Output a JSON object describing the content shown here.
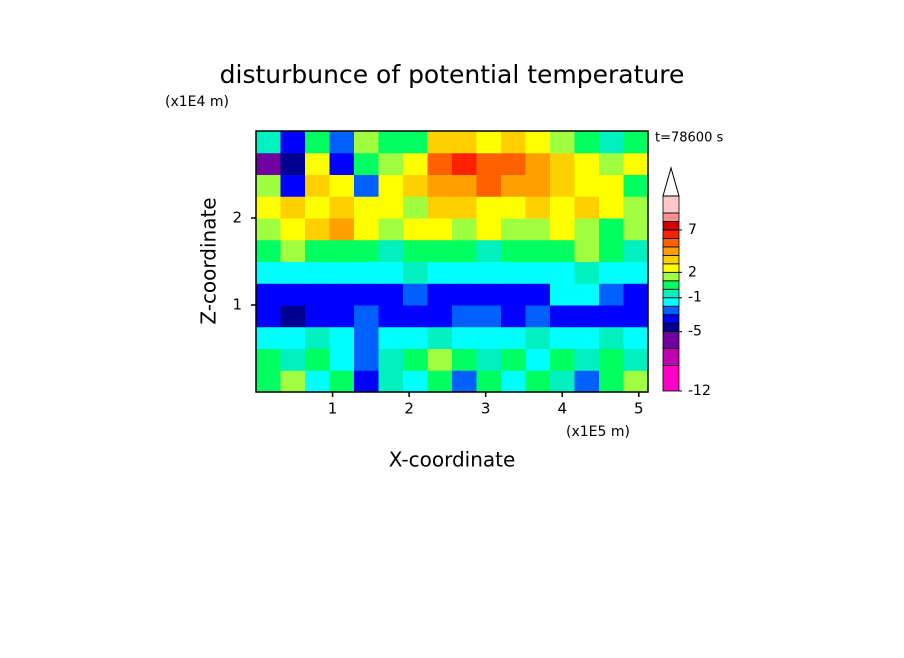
{
  "chart_data": {
    "type": "contour",
    "title": "disturbunce of potential temperature",
    "x_label": "X-coordinate",
    "y_label": "Z-coordinate",
    "x_unit": "(x1E5 m)",
    "y_unit": "(x1E4 m)",
    "annotation": "t=78600 s",
    "xlim": [
      0,
      5.12
    ],
    "ylim": [
      0,
      3
    ],
    "xticks": [
      1,
      2,
      3,
      4,
      5
    ],
    "yticks": [
      1,
      2
    ],
    "x": [
      0.16,
      0.48,
      0.8,
      1.12,
      1.44,
      1.76,
      2.08,
      2.4,
      2.72,
      3.04,
      3.36,
      3.68,
      4.0,
      4.32,
      4.64,
      4.96
    ],
    "y": [
      0.125,
      0.375,
      0.625,
      0.875,
      1.125,
      1.375,
      1.625,
      1.875,
      2.125,
      2.375,
      2.625,
      2.875
    ],
    "z": [
      [
        0.5,
        1.5,
        -1.5,
        0.5,
        -3.5,
        -0.5,
        -1.5,
        0.5,
        -2.5,
        0.5,
        -1.5,
        0.5,
        -0.5,
        -2.5,
        0.5,
        1.5
      ],
      [
        0.5,
        -0.5,
        0.5,
        -1.5,
        -2.5,
        -0.5,
        0.5,
        1.5,
        0.5,
        -0.5,
        0.5,
        -1.5,
        0.5,
        -0.5,
        0.5,
        -0.5
      ],
      [
        -1.5,
        -1.5,
        -0.5,
        -1.5,
        -2.5,
        -1.5,
        -1.5,
        -0.5,
        -1.5,
        -1.5,
        -1.5,
        -0.5,
        -1.5,
        -1.5,
        -0.5,
        -1.5
      ],
      [
        -3.5,
        -4.5,
        -3.5,
        -3.5,
        -2.5,
        -3.5,
        -3.5,
        -3.5,
        -2.5,
        -2.5,
        -3.5,
        -2.5,
        -3.5,
        -3.5,
        -3.5,
        -3.5
      ],
      [
        -3.5,
        -3.5,
        -3.5,
        -3.5,
        -3.5,
        -3.5,
        -2.5,
        -3.5,
        -3.5,
        -3.5,
        -3.5,
        -3.5,
        -1.5,
        -1.5,
        -2.5,
        -3.5
      ],
      [
        -1.5,
        -1.5,
        -1.5,
        -1.5,
        -1.5,
        -1.5,
        -0.5,
        -1.5,
        -1.5,
        -1.5,
        -1.5,
        -1.5,
        -1.5,
        -0.5,
        -1.5,
        -1.5
      ],
      [
        0.5,
        1.5,
        0.5,
        0.5,
        0.5,
        -0.5,
        0.5,
        0.5,
        0.5,
        -0.5,
        0.5,
        0.5,
        0.5,
        1.5,
        0.5,
        -0.5
      ],
      [
        1.5,
        2.5,
        3.5,
        4.5,
        2.5,
        1.5,
        2.5,
        2.5,
        1.5,
        2.5,
        1.5,
        1.5,
        2.5,
        1.5,
        0.5,
        1.5
      ],
      [
        2.5,
        3.5,
        2.5,
        3.5,
        2.5,
        2.5,
        1.5,
        3.5,
        3.5,
        2.5,
        2.5,
        3.5,
        2.5,
        3.5,
        2.5,
        1.5
      ],
      [
        1.5,
        -3.5,
        3.5,
        2.5,
        -2.5,
        2.5,
        3.5,
        4.5,
        4.5,
        5.5,
        4.5,
        4.5,
        3.5,
        2.5,
        2.5,
        0.5
      ],
      [
        -6.5,
        -4.5,
        2.5,
        -3.5,
        0.5,
        1.5,
        2.5,
        5.5,
        6.5,
        5.5,
        5.5,
        4.5,
        3.5,
        2.5,
        1.5,
        2.5
      ],
      [
        -0.5,
        -3.5,
        0.5,
        -2.5,
        1.5,
        0.5,
        0.5,
        3.5,
        3.5,
        2.5,
        3.5,
        2.5,
        1.5,
        0.5,
        -0.5,
        0.5
      ]
    ],
    "colorbar": {
      "levels": [
        -12,
        -9,
        -7,
        -5,
        -4,
        -3,
        -2,
        -1,
        0,
        1,
        2,
        3,
        4,
        5,
        6,
        7,
        8,
        9,
        11
      ],
      "colors": [
        "#ff00c8",
        "#c000b0",
        "#7000a0",
        "#000090",
        "#0000ff",
        "#0060ff",
        "#00ffff",
        "#00f0c0",
        "#00ff60",
        "#a0ff40",
        "#ffff00",
        "#ffd000",
        "#ffa000",
        "#ff6000",
        "#ff2000",
        "#d00000",
        "#ff9090",
        "#ffc8c8"
      ],
      "extend_color": "#ffffff",
      "ticks": [
        -12,
        -5,
        -1,
        2,
        7
      ]
    }
  }
}
